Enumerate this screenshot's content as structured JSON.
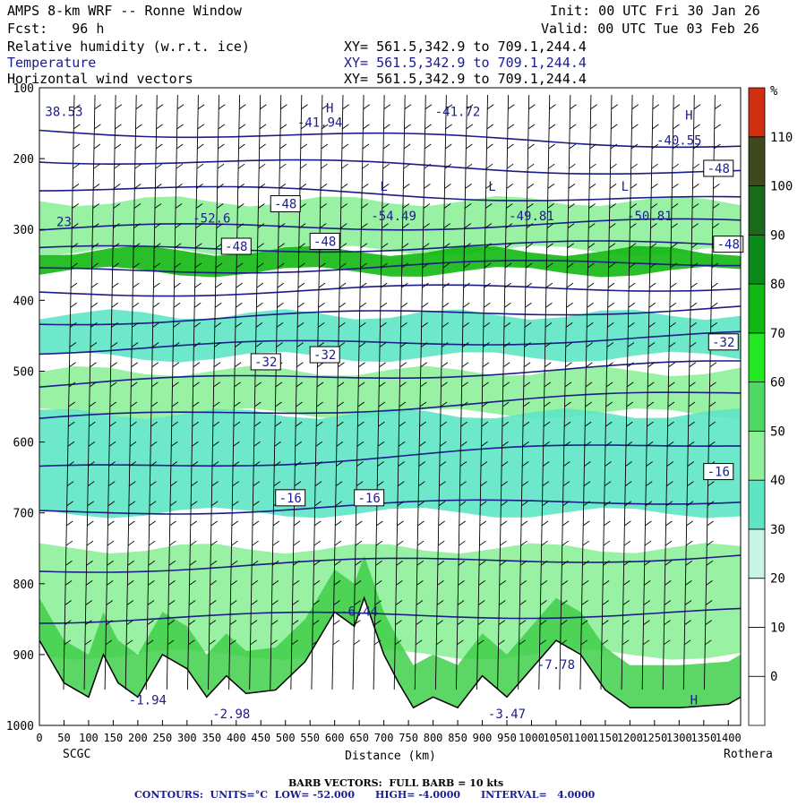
{
  "header": {
    "title": "AMPS 8-km WRF -- Ronne Window",
    "forecast": "Fcst:   96 h",
    "init": "Init: 00 UTC Fri 30 Jan 26",
    "valid": "Valid: 00 UTC Tue 03 Feb 26",
    "fields": [
      {
        "name": "Relative humidity (w.r.t. ice)",
        "xy": "XY= 561.5,342.9 to 709.1,244.4",
        "color": "#000000"
      },
      {
        "name": "Temperature",
        "xy": "XY= 561.5,342.9 to 709.1,244.4",
        "color": "#1c1c8c"
      },
      {
        "name": "Horizontal wind vectors",
        "xy": "XY= 561.5,342.9 to 709.1,244.4",
        "color": "#000000"
      }
    ]
  },
  "footer": {
    "barb_note": "BARB VECTORS:  FULL BARB = 10 kts",
    "contours": "CONTOURS:  UNITS=°C  LOW= -52.000      HIGH= -4.0000      INTERVAL=   4.0000"
  },
  "chart_data": {
    "type": "heatmap",
    "title": "Relative humidity (w.r.t. ice) / Temperature / Horizontal wind vectors",
    "xlabel": "Distance (km)",
    "ylabel": "",
    "x_ticks": [
      0,
      50,
      100,
      150,
      200,
      250,
      300,
      350,
      400,
      450,
      500,
      550,
      600,
      650,
      700,
      750,
      800,
      850,
      900,
      950,
      1000,
      1050,
      1100,
      1150,
      1200,
      1250,
      1300,
      1350,
      1400
    ],
    "xlim": [
      0,
      1425
    ],
    "y_ticks": [
      100,
      200,
      300,
      400,
      500,
      600,
      700,
      800,
      900,
      1000
    ],
    "ylim": [
      1000,
      100
    ],
    "x_end_labels": {
      "left": "SCGC",
      "right": "Rothera"
    },
    "colorbar": {
      "unit": "%",
      "levels": [
        0,
        10,
        20,
        30,
        40,
        50,
        60,
        70,
        80,
        90,
        100,
        110
      ],
      "colors": [
        "#ffffff",
        "#ffffff",
        "#ffffff",
        "#c8f5e4",
        "#5ee6c4",
        "#8ef09a",
        "#4ed964",
        "#22e822",
        "#12b812",
        "#0a8a1a",
        "#1a6a1a",
        "#3e4a1e",
        "#d03010"
      ]
    },
    "humidity_bands": [
      {
        "p_top": 260,
        "p_bottom": 330,
        "rh": 45
      },
      {
        "p_top": 330,
        "p_bottom": 360,
        "rh": 70
      },
      {
        "p_top": 420,
        "p_bottom": 480,
        "rh": 35
      },
      {
        "p_top": 500,
        "p_bottom": 560,
        "rh": 45
      },
      {
        "p_top": 560,
        "p_bottom": 700,
        "rh": 35
      },
      {
        "p_top": 750,
        "p_bottom": 900,
        "rh": 40
      }
    ],
    "terrain": [
      {
        "x": 0,
        "p": 880
      },
      {
        "x": 50,
        "p": 940
      },
      {
        "x": 100,
        "p": 960
      },
      {
        "x": 130,
        "p": 900
      },
      {
        "x": 160,
        "p": 940
      },
      {
        "x": 200,
        "p": 960
      },
      {
        "x": 250,
        "p": 900
      },
      {
        "x": 300,
        "p": 920
      },
      {
        "x": 340,
        "p": 960
      },
      {
        "x": 380,
        "p": 930
      },
      {
        "x": 420,
        "p": 955
      },
      {
        "x": 480,
        "p": 950
      },
      {
        "x": 540,
        "p": 910
      },
      {
        "x": 600,
        "p": 840
      },
      {
        "x": 640,
        "p": 860
      },
      {
        "x": 660,
        "p": 820
      },
      {
        "x": 700,
        "p": 900
      },
      {
        "x": 730,
        "p": 940
      },
      {
        "x": 760,
        "p": 975
      },
      {
        "x": 800,
        "p": 960
      },
      {
        "x": 850,
        "p": 975
      },
      {
        "x": 900,
        "p": 930
      },
      {
        "x": 950,
        "p": 960
      },
      {
        "x": 1000,
        "p": 920
      },
      {
        "x": 1050,
        "p": 880
      },
      {
        "x": 1100,
        "p": 900
      },
      {
        "x": 1150,
        "p": 950
      },
      {
        "x": 1200,
        "p": 975
      },
      {
        "x": 1300,
        "p": 975
      },
      {
        "x": 1400,
        "p": 970
      },
      {
        "x": 1425,
        "p": 960
      }
    ],
    "isotherms": [
      {
        "p0": 160,
        "p1": 180
      },
      {
        "p0": 200,
        "p1": 220
      },
      {
        "p0": 240,
        "p1": 260
      },
      {
        "p0": 300,
        "p1": 290
      },
      {
        "p0": 330,
        "p1": 320
      },
      {
        "p0": 360,
        "p1": 345
      },
      {
        "p0": 390,
        "p1": 380
      },
      {
        "p0": 430,
        "p1": 410
      },
      {
        "p0": 470,
        "p1": 450
      },
      {
        "p0": 520,
        "p1": 490
      },
      {
        "p0": 570,
        "p1": 530
      },
      {
        "p0": 640,
        "p1": 600
      },
      {
        "p0": 700,
        "p1": 680
      },
      {
        "p0": 780,
        "p1": 760
      },
      {
        "p0": 850,
        "p1": 840
      }
    ],
    "contour_labels": [
      {
        "x": 50,
        "p": 135,
        "text": "38.53",
        "boxed": false
      },
      {
        "x": 570,
        "p": 150,
        "text": "-41.94",
        "boxed": false
      },
      {
        "x": 850,
        "p": 135,
        "text": "-41.72",
        "boxed": false
      },
      {
        "x": 1300,
        "p": 175,
        "text": "-40.55",
        "boxed": false
      },
      {
        "x": 1380,
        "p": 215,
        "text": "-48",
        "boxed": true
      },
      {
        "x": 500,
        "p": 265,
        "text": "-48",
        "boxed": true
      },
      {
        "x": 720,
        "p": 282,
        "text": "-54.49",
        "boxed": false
      },
      {
        "x": 350,
        "p": 285,
        "text": "-52.6",
        "boxed": false
      },
      {
        "x": 1000,
        "p": 282,
        "text": "-49.81",
        "boxed": false
      },
      {
        "x": 1240,
        "p": 282,
        "text": "-50.81",
        "boxed": false
      },
      {
        "x": 50,
        "p": 290,
        "text": "23",
        "boxed": false
      },
      {
        "x": 400,
        "p": 325,
        "text": "-48",
        "boxed": true
      },
      {
        "x": 580,
        "p": 318,
        "text": "-48",
        "boxed": true
      },
      {
        "x": 1400,
        "p": 322,
        "text": "-48",
        "boxed": true
      },
      {
        "x": 460,
        "p": 488,
        "text": "-32",
        "boxed": true
      },
      {
        "x": 580,
        "p": 478,
        "text": "-32",
        "boxed": true
      },
      {
        "x": 1390,
        "p": 460,
        "text": "-32",
        "boxed": true
      },
      {
        "x": 1380,
        "p": 643,
        "text": "-16",
        "boxed": true
      },
      {
        "x": 510,
        "p": 680,
        "text": "-16",
        "boxed": true
      },
      {
        "x": 670,
        "p": 680,
        "text": "-16",
        "boxed": true
      },
      {
        "x": 650,
        "p": 840,
        "text": "-6.44",
        "boxed": false
      },
      {
        "x": 1050,
        "p": 915,
        "text": "-7.78",
        "boxed": false
      },
      {
        "x": 220,
        "p": 965,
        "text": "-1.94",
        "boxed": false
      },
      {
        "x": 390,
        "p": 985,
        "text": "-2.98",
        "boxed": false
      },
      {
        "x": 950,
        "p": 985,
        "text": "-3.47",
        "boxed": false
      },
      {
        "x": 1330,
        "p": 965,
        "text": "H",
        "boxed": false
      },
      {
        "x": 1320,
        "p": 140,
        "text": "H",
        "boxed": false
      },
      {
        "x": 590,
        "p": 130,
        "text": "H",
        "boxed": false
      },
      {
        "x": 700,
        "p": 240,
        "text": "L",
        "boxed": false
      },
      {
        "x": 920,
        "p": 240,
        "text": "L",
        "boxed": false
      },
      {
        "x": 1190,
        "p": 240,
        "text": "L",
        "boxed": false
      }
    ]
  }
}
